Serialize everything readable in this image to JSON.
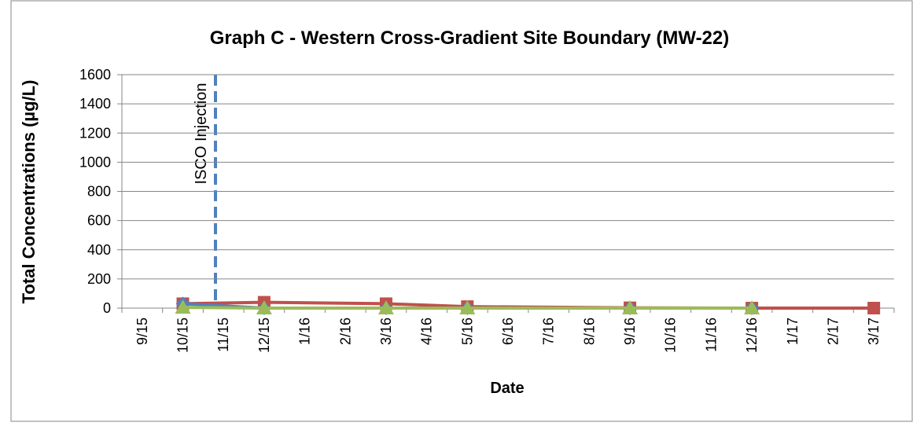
{
  "chart_data": {
    "type": "line",
    "title": "Graph C - Western Cross-Gradient Site Boundary (MW-22)",
    "xlabel": "Date",
    "ylabel": "Total Concentrations (µg/L)",
    "annotation": "ISCO Injection",
    "categories": [
      "9/15",
      "10/15",
      "11/15",
      "12/15",
      "1/16",
      "2/16",
      "3/16",
      "4/16",
      "5/16",
      "6/16",
      "7/16",
      "8/16",
      "9/16",
      "10/16",
      "11/16",
      "12/16",
      "1/17",
      "2/17",
      "3/17"
    ],
    "series": [
      {
        "color": "#c0504d",
        "marker": "square",
        "x": [
          "10/15",
          "12/15",
          "3/16",
          "5/16",
          "9/16",
          "12/16",
          "3/17"
        ],
        "values": [
          30,
          40,
          30,
          10,
          2,
          0,
          0
        ]
      },
      {
        "color": "#4f81bd",
        "marker": "diamond",
        "x": [
          "10/15",
          "12/15",
          "3/16",
          "5/16",
          "9/16",
          "12/16"
        ],
        "values": [
          30,
          0,
          0,
          0,
          0,
          0
        ]
      },
      {
        "color": "#9bbb59",
        "marker": "triangle",
        "x": [
          "10/15",
          "12/15",
          "3/16",
          "5/16",
          "9/16",
          "12/16"
        ],
        "values": [
          5,
          0,
          0,
          0,
          0,
          0
        ]
      }
    ],
    "ylim": [
      0,
      1600
    ],
    "yticks": [
      0,
      200,
      400,
      600,
      800,
      1000,
      1200,
      1400,
      1600
    ],
    "grid": true
  }
}
